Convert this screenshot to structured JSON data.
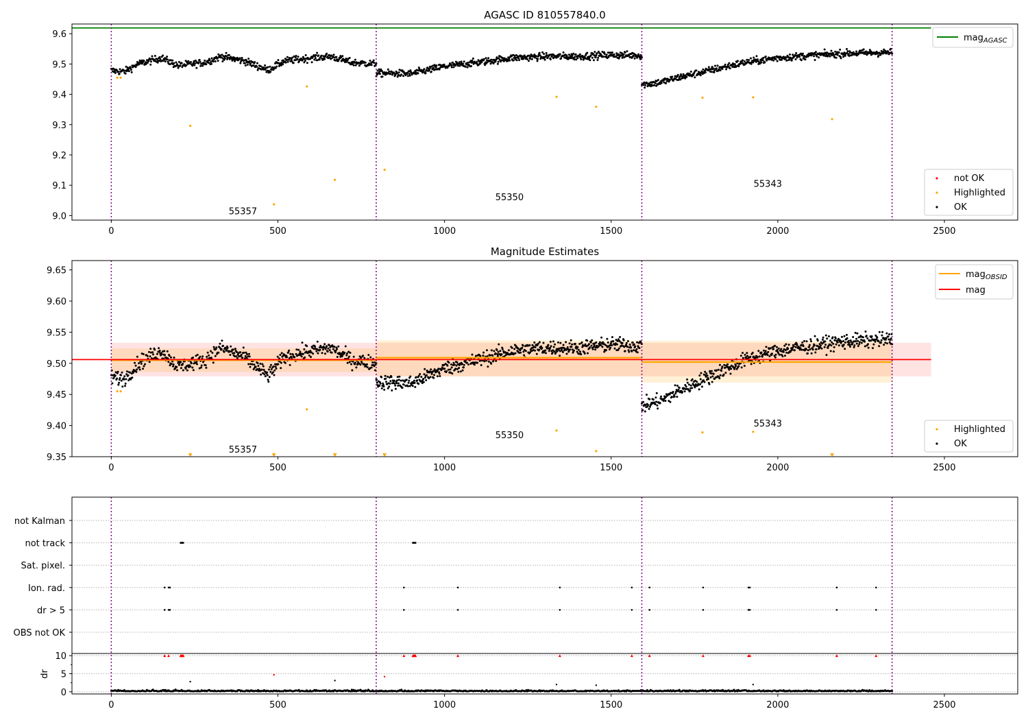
{
  "figure": {
    "title": "AGASC ID 810557840.0",
    "obs_boundaries": [
      0,
      795,
      1592,
      2343
    ]
  },
  "chart_data": [
    {
      "type": "scatter",
      "title": "AGASC ID 810557840.0",
      "xlabel": "",
      "ylabel": "",
      "xlim": [
        -118,
        2720
      ],
      "ylim": [
        8.985,
        9.632
      ],
      "xticks": [
        0,
        500,
        1000,
        1500,
        2000,
        2500
      ],
      "yticks": [
        9.0,
        9.1,
        9.2,
        9.3,
        9.4,
        9.5,
        9.6
      ],
      "grid": false,
      "legend_upper": {
        "placement": "top-right",
        "entries": [
          {
            "label": "mag",
            "sub": "AGASC",
            "color": "#008000"
          }
        ]
      },
      "legend_lower": {
        "placement": "bottom-right",
        "entries": [
          {
            "label": "not OK",
            "color": "#ff0000"
          },
          {
            "label": "Highlighted",
            "color": "#ffa500"
          },
          {
            "label": "OK",
            "color": "#000000"
          }
        ]
      },
      "hline": {
        "name": "mag_AGASC",
        "y": 9.619,
        "x_range": [
          -118,
          2460
        ],
        "color": "#008000"
      },
      "obsid_labels": [
        {
          "text": "55357",
          "x": 395,
          "y": 9.016
        },
        {
          "text": "55350",
          "x": 1195,
          "y": 9.062
        },
        {
          "text": "55343",
          "x": 1970,
          "y": 9.106
        }
      ],
      "series": [
        {
          "name": "OK",
          "color": "#000000",
          "segments": [
            {
              "x0": 0,
              "x1": 795,
              "y": [
                [
                  0,
                  9.478
                ],
                [
                  40,
                  9.475
                ],
                [
                  80,
                  9.5
                ],
                [
                  150,
                  9.52
                ],
                [
                  200,
                  9.495
                ],
                [
                  280,
                  9.505
                ],
                [
                  330,
                  9.525
                ],
                [
                  400,
                  9.51
                ],
                [
                  470,
                  9.48
                ],
                [
                  520,
                  9.51
                ],
                [
                  600,
                  9.52
                ],
                [
                  660,
                  9.525
                ],
                [
                  720,
                  9.505
                ],
                [
                  795,
                  9.5
                ]
              ],
              "n": 520,
              "noise": 0.012
            },
            {
              "x0": 795,
              "x1": 1592,
              "y": [
                [
                  795,
                  9.47
                ],
                [
                  900,
                  9.468
                ],
                [
                  1000,
                  9.492
                ],
                [
                  1100,
                  9.505
                ],
                [
                  1200,
                  9.52
                ],
                [
                  1300,
                  9.525
                ],
                [
                  1400,
                  9.525
                ],
                [
                  1500,
                  9.53
                ],
                [
                  1592,
                  9.528
                ]
              ],
              "n": 560,
              "noise": 0.012
            },
            {
              "x0": 1592,
              "x1": 2343,
              "y": [
                [
                  1592,
                  9.432
                ],
                [
                  1650,
                  9.44
                ],
                [
                  1700,
                  9.455
                ],
                [
                  1800,
                  9.48
                ],
                [
                  1900,
                  9.505
                ],
                [
                  2000,
                  9.52
                ],
                [
                  2100,
                  9.528
                ],
                [
                  2200,
                  9.535
                ],
                [
                  2343,
                  9.538
                ]
              ],
              "n": 520,
              "noise": 0.012
            }
          ]
        },
        {
          "name": "Highlighted",
          "color": "#ffa500",
          "points": [
            [
              18,
              9.455
            ],
            [
              28,
              9.455
            ],
            [
              237,
              9.296
            ],
            [
              488,
              9.037
            ],
            [
              587,
              9.426
            ],
            [
              671,
              9.118
            ],
            [
              820,
              9.151
            ],
            [
              1336,
              9.392
            ],
            [
              1455,
              9.359
            ],
            [
              1774,
              9.389
            ],
            [
              1926,
              9.39
            ],
            [
              2163,
              9.318
            ]
          ]
        }
      ]
    },
    {
      "type": "scatter",
      "title": "Magnitude Estimates",
      "xlabel": "",
      "ylabel": "",
      "xlim": [
        -118,
        2720
      ],
      "ylim": [
        9.35,
        9.665
      ],
      "xticks": [
        0,
        500,
        1000,
        1500,
        2000,
        2500
      ],
      "yticks": [
        9.35,
        9.4,
        9.45,
        9.5,
        9.55,
        9.6,
        9.65
      ],
      "grid": false,
      "legend_upper": {
        "placement": "top-right",
        "entries": [
          {
            "label": "mag",
            "sub": "OBSID",
            "color": "#ffa500"
          },
          {
            "label": "mag",
            "sub": "",
            "color": "#ff0000"
          }
        ]
      },
      "legend_lower": {
        "placement": "bottom-right",
        "entries": [
          {
            "label": "Highlighted",
            "color": "#ffa500"
          },
          {
            "label": "OK",
            "color": "#000000"
          }
        ]
      },
      "mag_band": {
        "x_range": [
          0,
          2460
        ],
        "y": 9.506,
        "lo": 9.479,
        "hi": 9.533,
        "color": "#ff0000"
      },
      "obsid_bands": [
        {
          "x0": 0,
          "x1": 795,
          "y": 9.505,
          "lo": 9.486,
          "hi": 9.524
        },
        {
          "x0": 795,
          "x1": 1592,
          "y": 9.509,
          "lo": 9.479,
          "hi": 9.537
        },
        {
          "x0": 1592,
          "x1": 2343,
          "y": 9.502,
          "lo": 9.469,
          "hi": 9.536
        }
      ],
      "obsid_labels": [
        {
          "text": "55357",
          "x": 395,
          "y": 9.362
        },
        {
          "text": "55350",
          "x": 1195,
          "y": 9.385
        },
        {
          "text": "55343",
          "x": 1970,
          "y": 9.404
        }
      ],
      "series": [
        {
          "name": "OK",
          "color": "#000000",
          "segments": [
            {
              "x0": 0,
              "x1": 795,
              "y": [
                [
                  0,
                  9.478
                ],
                [
                  40,
                  9.475
                ],
                [
                  80,
                  9.5
                ],
                [
                  150,
                  9.52
                ],
                [
                  200,
                  9.495
                ],
                [
                  280,
                  9.505
                ],
                [
                  330,
                  9.525
                ],
                [
                  400,
                  9.51
                ],
                [
                  470,
                  9.48
                ],
                [
                  520,
                  9.51
                ],
                [
                  600,
                  9.52
                ],
                [
                  660,
                  9.525
                ],
                [
                  720,
                  9.505
                ],
                [
                  795,
                  9.5
                ]
              ],
              "n": 520,
              "noise": 0.012
            },
            {
              "x0": 795,
              "x1": 1592,
              "y": [
                [
                  795,
                  9.47
                ],
                [
                  900,
                  9.468
                ],
                [
                  1000,
                  9.492
                ],
                [
                  1100,
                  9.505
                ],
                [
                  1200,
                  9.52
                ],
                [
                  1300,
                  9.525
                ],
                [
                  1400,
                  9.525
                ],
                [
                  1500,
                  9.53
                ],
                [
                  1592,
                  9.528
                ]
              ],
              "n": 560,
              "noise": 0.012
            },
            {
              "x0": 1592,
              "x1": 2343,
              "y": [
                [
                  1592,
                  9.432
                ],
                [
                  1650,
                  9.44
                ],
                [
                  1700,
                  9.455
                ],
                [
                  1800,
                  9.48
                ],
                [
                  1900,
                  9.505
                ],
                [
                  2000,
                  9.52
                ],
                [
                  2100,
                  9.528
                ],
                [
                  2200,
                  9.535
                ],
                [
                  2343,
                  9.538
                ]
              ],
              "n": 520,
              "noise": 0.012
            }
          ]
        },
        {
          "name": "Highlighted",
          "color": "#ffa500",
          "points": [
            [
              18,
              9.455
            ],
            [
              28,
              9.455
            ],
            [
              587,
              9.426
            ],
            [
              1336,
              9.392
            ],
            [
              1455,
              9.359
            ],
            [
              1774,
              9.389
            ],
            [
              1926,
              9.39
            ]
          ]
        },
        {
          "name": "Highlighted (below axis)",
          "color": "#ffa500",
          "marker": "triangle-down",
          "points": [
            [
              237,
              9.352
            ],
            [
              488,
              9.352
            ],
            [
              671,
              9.352
            ],
            [
              820,
              9.352
            ],
            [
              2163,
              9.352
            ]
          ]
        }
      ]
    },
    {
      "type": "scatter",
      "title": "",
      "xlabel": "",
      "ylabel": "",
      "xlim": [
        -118,
        2720
      ],
      "grid": true,
      "flag_rows": [
        "not Kalman",
        "not track",
        "Sat. pixel.",
        "Ion. rad.",
        "dr > 5",
        "OBS not OK"
      ],
      "flags": [
        {
          "row": "not track",
          "x": [
            208,
            210,
            212,
            214,
            216,
            905,
            907,
            909,
            911,
            913
          ]
        },
        {
          "row": "Ion. rad.",
          "x": [
            160,
            172,
            176,
            878,
            1040,
            1346,
            1562,
            1615,
            1776,
            1912,
            1916,
            2177,
            2295
          ]
        },
        {
          "row": "dr > 5",
          "x": [
            160,
            172,
            176,
            878,
            1040,
            1346,
            1562,
            1615,
            1776,
            1912,
            1916,
            2177,
            2295
          ]
        }
      ],
      "dr_axis": {
        "label": "dr",
        "yticks": [
          0,
          5,
          10
        ],
        "ylim": [
          -0.6,
          10.6
        ]
      },
      "dr_clipped": {
        "color": "#ff0000",
        "y": 10,
        "x": [
          160,
          172,
          208,
          210,
          212,
          214,
          216,
          878,
          905,
          907,
          909,
          911,
          913,
          1040,
          1346,
          1562,
          1615,
          1776,
          1912,
          1916,
          2177,
          2295
        ]
      },
      "dr_red_points": [
        [
          488,
          4.7
        ],
        [
          820,
          4.2
        ]
      ],
      "dr_black_points": [
        [
          237,
          2.8
        ],
        [
          671,
          3.1
        ],
        [
          1336,
          2.0
        ],
        [
          1455,
          1.8
        ],
        [
          1926,
          2.0
        ]
      ]
    }
  ]
}
